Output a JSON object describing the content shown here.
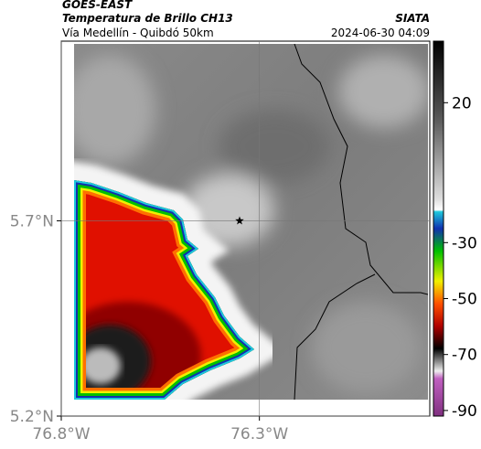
{
  "header": {
    "source": "GOES-EAST",
    "title": "Temperatura de Brillo CH13",
    "subtitle": "Vía Medellín - Quibdó 50km",
    "org": "SIATA",
    "datetime": "2024-06-30 04:09"
  },
  "map": {
    "xlim": [
      -76.8,
      -75.87
    ],
    "ylim": [
      5.2,
      6.16
    ],
    "xticks": [
      {
        "value": -76.8,
        "label": "76.8°W"
      },
      {
        "value": -76.3,
        "label": "76.3°W"
      }
    ],
    "yticks": [
      {
        "value": 5.2,
        "label": "5.2°N"
      },
      {
        "value": 5.7,
        "label": "5.7°N"
      }
    ],
    "grid": true,
    "marker": {
      "lon": -76.35,
      "lat": 5.7
    }
  },
  "colorbar": {
    "lim": [
      -92,
      42
    ],
    "ticks": [
      20,
      -30,
      -50,
      -70,
      -90
    ]
  }
}
